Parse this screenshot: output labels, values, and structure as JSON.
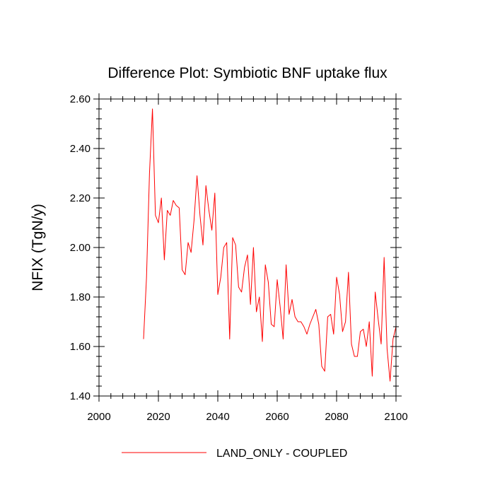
{
  "chart_data": {
    "type": "line",
    "title": "Difference Plot: Symbiotic BNF uptake flux",
    "xlabel": "",
    "ylabel": "NFIX  (TgN/y)",
    "xlim": [
      2000,
      2100
    ],
    "ylim": [
      1.4,
      2.6
    ],
    "x_ticks": [
      "2000",
      "2020",
      "2040",
      "2060",
      "2080",
      "2100"
    ],
    "y_ticks": [
      "1.40",
      "1.60",
      "1.80",
      "2.00",
      "2.20",
      "2.40",
      "2.60"
    ],
    "grid": false,
    "legend_position": "bottom-center",
    "series": [
      {
        "name": "LAND_ONLY - COUPLED",
        "color": "#ff0000",
        "x": [
          2015,
          2016,
          2017,
          2018,
          2019,
          2020,
          2021,
          2022,
          2023,
          2024,
          2025,
          2026,
          2027,
          2028,
          2029,
          2030,
          2031,
          2032,
          2033,
          2034,
          2035,
          2036,
          2037,
          2038,
          2039,
          2040,
          2041,
          2042,
          2043,
          2044,
          2045,
          2046,
          2047,
          2048,
          2049,
          2050,
          2051,
          2052,
          2053,
          2054,
          2055,
          2056,
          2057,
          2058,
          2059,
          2060,
          2061,
          2062,
          2063,
          2064,
          2065,
          2066,
          2067,
          2068,
          2069,
          2070,
          2071,
          2072,
          2073,
          2074,
          2075,
          2076,
          2077,
          2078,
          2079,
          2080,
          2081,
          2082,
          2083,
          2084,
          2085,
          2086,
          2087,
          2088,
          2089,
          2090,
          2091,
          2092,
          2093,
          2094,
          2095,
          2096,
          2097,
          2098,
          2099,
          2100
        ],
        "values": [
          1.63,
          1.88,
          2.3,
          2.56,
          2.13,
          2.1,
          2.2,
          1.95,
          2.15,
          2.13,
          2.19,
          2.17,
          2.16,
          1.91,
          1.89,
          2.02,
          1.98,
          2.11,
          2.29,
          2.13,
          2.01,
          2.25,
          2.15,
          2.07,
          2.22,
          1.81,
          1.88,
          2.0,
          2.02,
          1.63,
          2.04,
          2.01,
          1.84,
          1.82,
          1.92,
          1.97,
          1.77,
          2.0,
          1.74,
          1.8,
          1.62,
          1.93,
          1.86,
          1.69,
          1.68,
          1.87,
          1.76,
          1.63,
          1.93,
          1.73,
          1.79,
          1.72,
          1.7,
          1.7,
          1.68,
          1.65,
          1.69,
          1.72,
          1.75,
          1.69,
          1.52,
          1.5,
          1.72,
          1.73,
          1.65,
          1.88,
          1.81,
          1.66,
          1.7,
          1.9,
          1.61,
          1.56,
          1.56,
          1.66,
          1.67,
          1.6,
          1.7,
          1.48,
          1.82,
          1.71,
          1.61,
          1.96,
          1.59,
          1.46,
          1.63,
          1.68
        ]
      }
    ]
  }
}
